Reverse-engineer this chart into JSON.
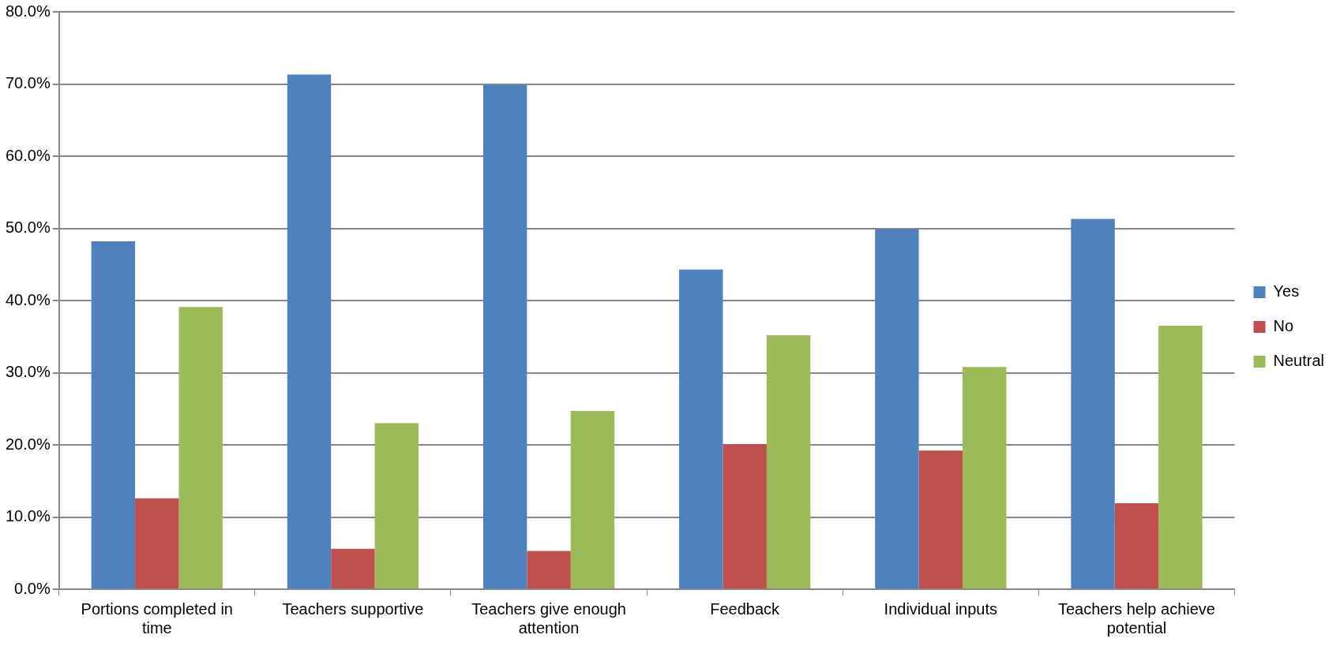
{
  "chart_data": {
    "type": "bar",
    "categories": [
      "Portions completed in time",
      "Teachers supportive",
      "Teachers give enough attention",
      "Feedback",
      "Individual inputs",
      "Teachers help achieve potential"
    ],
    "series": [
      {
        "name": "Yes",
        "color": "#4f81bd",
        "values": [
          48.2,
          71.3,
          69.9,
          44.3,
          49.9,
          51.3
        ]
      },
      {
        "name": "No",
        "color": "#c0504d",
        "values": [
          12.6,
          5.6,
          5.3,
          20.1,
          19.2,
          11.9
        ]
      },
      {
        "name": "Neutral",
        "color": "#9bbb59",
        "values": [
          39.1,
          23.0,
          24.7,
          35.2,
          30.8,
          36.5
        ]
      }
    ],
    "ylim": [
      0,
      80
    ],
    "yticks": [
      {
        "value": 0,
        "label": "0.0%"
      },
      {
        "value": 10,
        "label": "10.0%"
      },
      {
        "value": 20,
        "label": "20.0%"
      },
      {
        "value": 30,
        "label": "30.0%"
      },
      {
        "value": 40,
        "label": "40.0%"
      },
      {
        "value": 50,
        "label": "50.0%"
      },
      {
        "value": 60,
        "label": "60.0%"
      },
      {
        "value": 70,
        "label": "70.0%"
      },
      {
        "value": 80,
        "label": "80.0%"
      }
    ],
    "grid": "y",
    "legend": "right"
  }
}
